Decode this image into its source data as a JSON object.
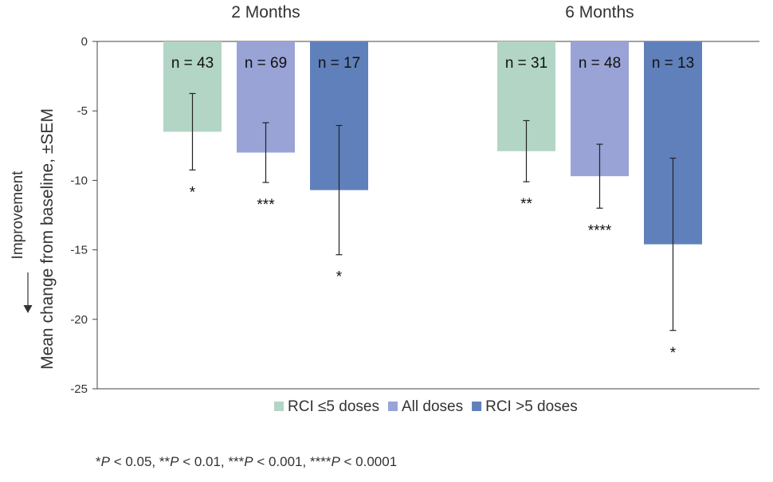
{
  "chart_data": {
    "type": "bar",
    "groups": [
      "2 Months",
      "6 Months"
    ],
    "ylabel": "Mean change from baseline, ±SEM",
    "direction_label": "Improvement",
    "ylim": [
      -25,
      0
    ],
    "yticks": [
      0,
      -5,
      -10,
      -15,
      -20,
      -25
    ],
    "series": [
      {
        "name": "RCI ≤5 doses",
        "color": "#b3d5c6",
        "values": [
          -6.5,
          -7.9
        ],
        "sem": [
          2.75,
          2.2
        ],
        "n_labels": [
          "n = 43",
          "n = 31"
        ],
        "sig": [
          "*",
          "**"
        ]
      },
      {
        "name": "All doses",
        "color": "#99a3d6",
        "values": [
          -8.0,
          -9.7
        ],
        "sem": [
          2.15,
          2.3
        ],
        "n_labels": [
          "n = 69",
          "n = 48"
        ],
        "sig": [
          "***",
          "****"
        ]
      },
      {
        "name": "RCI >5 doses",
        "color": "#6080bb",
        "values": [
          -10.7,
          -14.6
        ],
        "sem": [
          4.65,
          6.2
        ],
        "n_labels": [
          "n = 17",
          "n = 13"
        ],
        "sig": [
          "*",
          "*"
        ]
      }
    ]
  },
  "footnote": {
    "p1_prefix": "*",
    "p1": "P",
    "p1_suffix": " < 0.05, ",
    "p2_prefix": "**",
    "p2": "P",
    "p2_suffix": " < 0.01, ",
    "p3_prefix": "***",
    "p3": "P",
    "p3_suffix": " < 0.001, ",
    "p4_prefix": "****",
    "p4": "P",
    "p4_suffix": " < 0.0001"
  }
}
